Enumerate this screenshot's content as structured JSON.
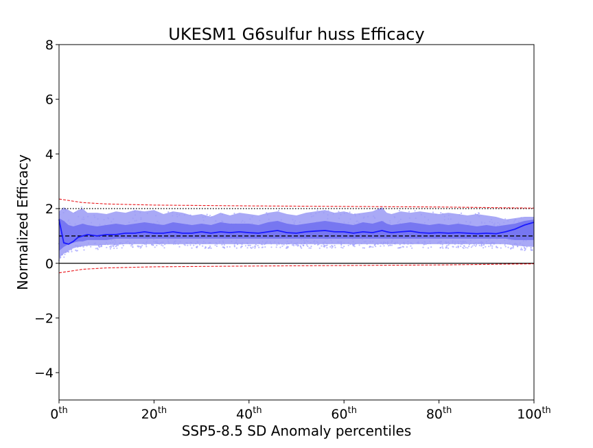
{
  "chart_data": {
    "type": "area",
    "title": "UKESM1 G6sulfur huss Efficacy",
    "xlabel": "SSP5-8.5 SD Anomaly percentiles",
    "ylabel": "Normalized Efficacy",
    "xlim": [
      0,
      100
    ],
    "ylim": [
      -5,
      8
    ],
    "grid": false,
    "legend": "none",
    "x_ticks": [
      {
        "value": 0,
        "base": "0",
        "sup": "th"
      },
      {
        "value": 20,
        "base": "20",
        "sup": "th"
      },
      {
        "value": 40,
        "base": "40",
        "sup": "th"
      },
      {
        "value": 60,
        "base": "60",
        "sup": "th"
      },
      {
        "value": 80,
        "base": "80",
        "sup": "th"
      },
      {
        "value": 100,
        "base": "100",
        "sup": "th"
      }
    ],
    "y_ticks": [
      {
        "value": -4,
        "label": "−4"
      },
      {
        "value": -2,
        "label": "−2"
      },
      {
        "value": 0,
        "label": "0"
      },
      {
        "value": 2,
        "label": "2"
      },
      {
        "value": 4,
        "label": "4"
      },
      {
        "value": 6,
        "label": "6"
      },
      {
        "value": 8,
        "label": "8"
      }
    ],
    "reference_lines": [
      {
        "name": "zero",
        "y": 0,
        "style": "solid",
        "color": "#000000"
      },
      {
        "name": "unity",
        "y": 1,
        "style": "dashed",
        "color": "#000000"
      },
      {
        "name": "two",
        "y": 2,
        "style": "dotted",
        "color": "#000000"
      }
    ],
    "bounds": {
      "color": "#e8141a",
      "upper": {
        "x": [
          0,
          5,
          10,
          20,
          40,
          60,
          80,
          100
        ],
        "y": [
          2.35,
          2.22,
          2.17,
          2.13,
          2.1,
          2.08,
          2.06,
          2.02
        ]
      },
      "lower": {
        "x": [
          0,
          5,
          10,
          20,
          40,
          60,
          80,
          100
        ],
        "y": [
          -0.35,
          -0.22,
          -0.17,
          -0.13,
          -0.1,
          -0.08,
          -0.06,
          -0.02
        ]
      }
    },
    "bands": {
      "x": [
        0,
        1,
        2,
        3,
        4,
        5,
        6,
        8,
        10,
        12,
        14,
        16,
        18,
        20,
        22,
        24,
        26,
        28,
        30,
        32,
        34,
        36,
        38,
        40,
        42,
        44,
        46,
        48,
        50,
        52,
        54,
        56,
        58,
        60,
        62,
        64,
        66,
        68,
        69,
        70,
        72,
        74,
        76,
        78,
        80,
        82,
        84,
        86,
        88,
        90,
        92,
        94,
        96,
        98,
        100
      ],
      "outer_upper": [
        1.9,
        2.05,
        1.95,
        1.85,
        1.95,
        2.0,
        1.85,
        1.85,
        1.8,
        1.9,
        1.85,
        1.95,
        1.9,
        1.95,
        1.8,
        1.9,
        1.85,
        1.75,
        1.8,
        1.7,
        1.85,
        1.75,
        1.85,
        1.8,
        1.75,
        1.85,
        1.9,
        1.8,
        1.75,
        1.85,
        1.9,
        1.95,
        1.85,
        1.9,
        1.8,
        1.85,
        1.9,
        2.05,
        1.85,
        1.8,
        1.9,
        1.85,
        1.9,
        1.85,
        1.8,
        1.85,
        1.8,
        1.75,
        1.8,
        1.75,
        1.7,
        1.6,
        1.65,
        1.7,
        1.7
      ],
      "inner_upper": [
        1.65,
        1.55,
        1.4,
        1.35,
        1.4,
        1.45,
        1.4,
        1.35,
        1.4,
        1.45,
        1.4,
        1.45,
        1.5,
        1.45,
        1.4,
        1.5,
        1.45,
        1.4,
        1.45,
        1.4,
        1.5,
        1.45,
        1.45,
        1.45,
        1.4,
        1.5,
        1.55,
        1.45,
        1.4,
        1.45,
        1.5,
        1.55,
        1.5,
        1.45,
        1.4,
        1.5,
        1.45,
        1.55,
        1.45,
        1.4,
        1.45,
        1.5,
        1.45,
        1.4,
        1.45,
        1.4,
        1.45,
        1.4,
        1.35,
        1.4,
        1.35,
        1.4,
        1.45,
        1.55,
        1.6
      ],
      "inner_lower": [
        0.45,
        0.6,
        0.7,
        0.75,
        0.8,
        0.8,
        0.85,
        0.85,
        0.85,
        0.9,
        0.9,
        0.9,
        0.9,
        0.9,
        0.9,
        0.9,
        0.9,
        0.9,
        0.9,
        0.9,
        0.9,
        0.9,
        0.9,
        0.9,
        0.9,
        0.9,
        0.9,
        0.9,
        0.9,
        0.9,
        0.9,
        0.9,
        0.9,
        0.9,
        0.9,
        0.9,
        0.9,
        0.9,
        0.9,
        0.9,
        0.9,
        0.9,
        0.9,
        0.9,
        0.9,
        0.9,
        0.9,
        0.9,
        0.9,
        0.9,
        0.9,
        0.9,
        0.85,
        0.85,
        0.85
      ],
      "outer_lower": [
        0.2,
        0.35,
        0.45,
        0.55,
        0.6,
        0.62,
        0.65,
        0.65,
        0.68,
        0.68,
        0.7,
        0.7,
        0.7,
        0.7,
        0.7,
        0.7,
        0.7,
        0.7,
        0.7,
        0.7,
        0.7,
        0.7,
        0.7,
        0.7,
        0.7,
        0.7,
        0.7,
        0.7,
        0.7,
        0.7,
        0.7,
        0.7,
        0.7,
        0.7,
        0.7,
        0.7,
        0.7,
        0.7,
        0.7,
        0.7,
        0.7,
        0.7,
        0.7,
        0.7,
        0.7,
        0.7,
        0.7,
        0.7,
        0.7,
        0.7,
        0.7,
        0.7,
        0.65,
        0.62,
        0.6
      ],
      "median": [
        1.6,
        0.75,
        0.7,
        0.8,
        0.95,
        1.0,
        1.05,
        1.0,
        1.05,
        1.05,
        1.1,
        1.1,
        1.15,
        1.1,
        1.1,
        1.15,
        1.1,
        1.1,
        1.15,
        1.1,
        1.15,
        1.12,
        1.15,
        1.12,
        1.1,
        1.15,
        1.2,
        1.12,
        1.1,
        1.15,
        1.18,
        1.2,
        1.15,
        1.15,
        1.1,
        1.15,
        1.12,
        1.2,
        1.15,
        1.12,
        1.15,
        1.18,
        1.12,
        1.1,
        1.12,
        1.1,
        1.12,
        1.1,
        1.08,
        1.1,
        1.08,
        1.15,
        1.25,
        1.4,
        1.5
      ],
      "colors": {
        "outer": "#9a9af5",
        "inner": "#6e6ef0",
        "median": "#1a1aff",
        "scatter": "#a0a0ff"
      }
    }
  }
}
